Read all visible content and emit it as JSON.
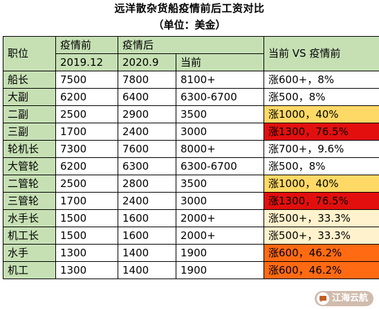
{
  "title": "远洋散杂货船疫情前后工资对比",
  "subtitle": "（单位：美金）",
  "header": {
    "position": "职位",
    "before_group": "疫情前",
    "after_group": "疫情后",
    "compare": "当前 VS 疫情前",
    "before_date": "2019.12",
    "after_date": "2020.9",
    "current": "当前"
  },
  "rows": [
    {
      "position": "船长",
      "before": "7500",
      "after": "7800",
      "current": "8100+",
      "change": "涨600+，8%",
      "level": 0
    },
    {
      "position": "大副",
      "before": "6200",
      "after": "6400",
      "current": "6300-6700",
      "change": "涨500，8%",
      "level": 0
    },
    {
      "position": "二副",
      "before": "2500",
      "after": "2900",
      "current": "3500",
      "change": "涨1000，40%",
      "level": 2
    },
    {
      "position": "三副",
      "before": "1700",
      "after": "2400",
      "current": "3000",
      "change": "涨1300，76.5%",
      "level": 4
    },
    {
      "position": "轮机长",
      "before": "7300",
      "after": "7600",
      "current": "8000+",
      "change": "涨700+，9.6%",
      "level": 0
    },
    {
      "position": "大管轮",
      "before": "6200",
      "after": "6300",
      "current": "6300-6700",
      "change": "涨500，8%",
      "level": 0
    },
    {
      "position": "二管轮",
      "before": "2500",
      "after": "2800",
      "current": "3500",
      "change": "涨1000，40%",
      "level": 2
    },
    {
      "position": "三管轮",
      "before": "1700",
      "after": "2400",
      "current": "3000",
      "change": "涨1300，76.5%",
      "level": 4
    },
    {
      "position": "水手长",
      "before": "1500",
      "after": "1600",
      "current": "2000+",
      "change": "涨500+，33.3%",
      "level": 1
    },
    {
      "position": "机工长",
      "before": "1500",
      "after": "1600",
      "current": "2000+",
      "change": "涨500+，33.3%",
      "level": 1
    },
    {
      "position": "水手",
      "before": "1300",
      "after": "1400",
      "current": "1900",
      "change": "涨600，46.2%",
      "level": 3
    },
    {
      "position": "机工",
      "before": "1300",
      "after": "1400",
      "current": "1900",
      "change": "涨600，46.2%",
      "level": 3
    }
  ],
  "watermark": {
    "text": "江海云航",
    "icon": "chat-bubble-icon"
  },
  "colors": {
    "header_bg": "#c6e0b4",
    "level_0": "#ffffff",
    "level_1": "#fff2cc",
    "level_2": "#ffd966",
    "level_3": "#ff6a13",
    "level_4": "#e30f0f"
  }
}
